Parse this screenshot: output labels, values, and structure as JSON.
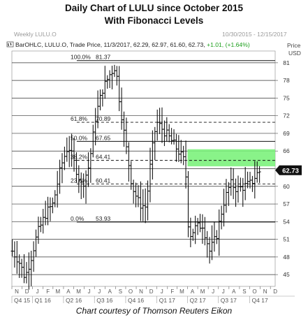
{
  "header": {
    "title_line1": "Daily Chart of LULU since October 2015",
    "title_line2": "With Fibonacci Levels",
    "window_label": "Weekly LULU.O",
    "date_range": "10/30/2015 - 12/15/2017",
    "price_currency": "Price",
    "price_unit": "USD"
  },
  "legend": {
    "prefix": "BarOHLC, LULU.O, Trade Price, 11/3/2017, 62.29, 62.97, 61.60, 62.73,",
    "change": "+1.01, (+1.64%)",
    "change_color": "#1a9e1a"
  },
  "caption": "Chart courtesy of Thomson Reuters Eikon",
  "colors": {
    "bars": "#000000",
    "grid": "#333333",
    "highlight": "#7cf27c",
    "price_tag_bg": "#111111",
    "price_tag_text": "#ffffff"
  },
  "chart_data": {
    "type": "bar",
    "style": "OHLC",
    "x_axis": {
      "start": "2015-11-01",
      "end": "2017-12-15",
      "month_ticks": [
        "N",
        "D",
        "J",
        "F",
        "M",
        "A",
        "M",
        "J",
        "J",
        "A",
        "S",
        "O",
        "N",
        "D",
        "J",
        "F",
        "M",
        "A",
        "M",
        "J",
        "J",
        "A",
        "S",
        "O",
        "N",
        "D"
      ],
      "quarter_labels": [
        "Q4 15",
        "Q1 16",
        "Q2 16",
        "Q3 16",
        "Q4 16",
        "Q1 17",
        "Q2 17",
        "Q3 17",
        "Q4 17"
      ]
    },
    "y_axis": {
      "ylim": [
        43,
        83
      ],
      "ticks": [
        45,
        48,
        51,
        54,
        57,
        60,
        63,
        66,
        69,
        72,
        75,
        78,
        81
      ]
    },
    "grid": true,
    "fibonacci_levels": [
      {
        "pct": "100.0%",
        "price": 81.37
      },
      {
        "pct": "61.8%",
        "price": 70.89
      },
      {
        "pct": "50.0%",
        "price": 67.65
      },
      {
        "pct": "38.2%",
        "price": 64.41
      },
      {
        "pct": "23.6%",
        "price": 60.41
      },
      {
        "pct": "0.0%",
        "price": 53.93
      }
    ],
    "fibonacci_solid_lines": [
      81.37,
      67.65,
      53.93
    ],
    "fibonacci_dashed_lines": [
      70.89,
      64.41,
      60.41
    ],
    "highlight_zone": {
      "from": "2017-04-01",
      "to": "2017-12-15",
      "low": 63.4,
      "high": 66.3
    },
    "last_price": 62.73,
    "last_price_label": "62.73",
    "bar_path": [
      [
        "2015-11-02",
        49.0
      ],
      [
        "2015-11-20",
        47.5
      ],
      [
        "2015-12-10",
        44.5
      ],
      [
        "2015-12-28",
        48.0
      ],
      [
        "2016-01-15",
        52.0
      ],
      [
        "2016-02-10",
        55.5
      ],
      [
        "2016-03-01",
        57.0
      ],
      [
        "2016-03-25",
        63.5
      ],
      [
        "2016-04-15",
        67.0
      ],
      [
        "2016-05-05",
        63.5
      ],
      [
        "2016-05-25",
        60.0
      ],
      [
        "2016-06-15",
        63.5
      ],
      [
        "2016-07-05",
        72.0
      ],
      [
        "2016-07-25",
        76.5
      ],
      [
        "2016-08-15",
        79.0
      ],
      [
        "2016-09-01",
        80.5
      ],
      [
        "2016-09-12",
        75.0
      ],
      [
        "2016-09-30",
        67.5
      ],
      [
        "2016-10-20",
        60.0
      ],
      [
        "2016-11-10",
        57.0
      ],
      [
        "2016-11-30",
        56.5
      ],
      [
        "2016-12-15",
        65.0
      ],
      [
        "2016-12-30",
        71.0
      ],
      [
        "2017-01-20",
        69.5
      ],
      [
        "2017-02-10",
        68.0
      ],
      [
        "2017-03-05",
        66.0
      ],
      [
        "2017-03-25",
        64.0
      ],
      [
        "2017-04-05",
        51.5
      ],
      [
        "2017-04-25",
        53.0
      ],
      [
        "2017-05-15",
        53.5
      ],
      [
        "2017-06-05",
        49.0
      ],
      [
        "2017-06-25",
        51.5
      ],
      [
        "2017-07-15",
        57.0
      ],
      [
        "2017-08-05",
        60.5
      ],
      [
        "2017-08-25",
        59.5
      ],
      [
        "2017-09-15",
        60.0
      ],
      [
        "2017-10-05",
        60.5
      ],
      [
        "2017-10-20",
        62.0
      ],
      [
        "2017-11-03",
        62.73
      ]
    ]
  }
}
